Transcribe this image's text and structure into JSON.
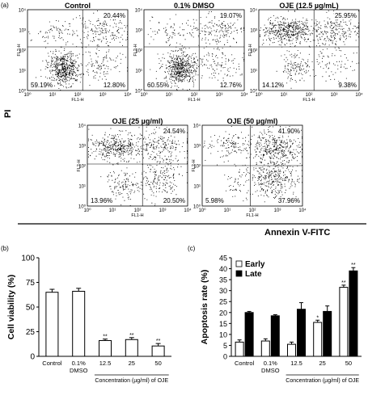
{
  "figure": {
    "panel_a_label": "(a)",
    "panel_b_label": "(b)",
    "panel_c_label": "(c)",
    "shared_y_label": "PI",
    "shared_x_label": "Annexin V-FITC"
  },
  "chart_data": [
    {
      "type": "scatter",
      "panel": "a",
      "plots": [
        {
          "title": "Control",
          "quadrants": {
            "UR": "20.44%",
            "LL": "59.19%",
            "LR": "12.80%"
          },
          "tick_labels": [
            "10⁰",
            "10¹",
            "10²",
            "10³",
            "10⁴"
          ],
          "y_axis": "FL2-H",
          "x_axis": "FL1-H"
        },
        {
          "title": "0.1% DMSO",
          "quadrants": {
            "UR": "19.07%",
            "LL": "60.55%",
            "LR": "12.76%"
          },
          "tick_labels": [
            "10⁰",
            "10¹",
            "10²",
            "10³",
            "10⁴"
          ],
          "y_axis": "FL2-H",
          "x_axis": "FL1-H"
        },
        {
          "title": "OJE (12.5 µg/mL)",
          "quadrants": {
            "UR": "25.95%",
            "LL": "14.12%",
            "LR": "9.38%"
          },
          "tick_labels": [
            "10⁰",
            "10¹",
            "10²",
            "10³",
            "10⁴"
          ],
          "y_axis": "FL2-H",
          "x_axis": "FL1-H"
        },
        {
          "title": "OJE (25 µg/ml)",
          "quadrants": {
            "UR": "24.54%",
            "LL": "13.96%",
            "LR": "20.50%"
          },
          "tick_labels": [
            "10⁰",
            "10¹",
            "10²",
            "10³",
            "10⁴"
          ],
          "y_axis": "FL2-H",
          "x_axis": "FL1-H"
        },
        {
          "title": "OJE (50 µg/ml)",
          "quadrants": {
            "UR": "41.90%",
            "LL": "5.98%",
            "LR": "37.96%"
          },
          "tick_labels": [
            "10⁰",
            "10¹",
            "10²",
            "10³",
            "10⁴"
          ],
          "y_axis": "FL2-H",
          "x_axis": "FL1-H"
        }
      ]
    },
    {
      "type": "bar",
      "panel": "b",
      "categories": [
        "Control",
        "0.1%\nDMSO",
        "12.5",
        "25",
        "50"
      ],
      "values": [
        65,
        66,
        16,
        17,
        10.5
      ],
      "errors": [
        3,
        3,
        1.5,
        2,
        2.5
      ],
      "significance": [
        "",
        "",
        "**",
        "**",
        "**"
      ],
      "ylabel": "Cell viability (%)",
      "xlabel": "Concentration (µg/ml) of OJE",
      "ylim": [
        0,
        100
      ],
      "yticks": [
        "0",
        "25",
        "50",
        "75",
        "100"
      ]
    },
    {
      "type": "bar",
      "panel": "c",
      "categories": [
        "Control",
        "0.1%\nDMSO",
        "12.5",
        "25",
        "50"
      ],
      "series": [
        {
          "name": "Early",
          "values": [
            6.5,
            7,
            5.5,
            15.5,
            31.5
          ],
          "errors": [
            1,
            1,
            1,
            1,
            1
          ],
          "significance": [
            "",
            "",
            "",
            "*",
            "**"
          ],
          "color": "#ffffff"
        },
        {
          "name": "Late",
          "values": [
            20,
            18.5,
            21.5,
            20.5,
            39
          ],
          "errors": [
            0.5,
            0.5,
            3,
            2.5,
            1.5
          ],
          "significance": [
            "",
            "",
            "",
            "",
            "**"
          ],
          "color": "#000000"
        }
      ],
      "ylabel": "Apoptosis rate (%)",
      "xlabel": "Concentration (µg/ml) of OJE",
      "ylim": [
        0,
        45
      ],
      "yticks": [
        "0",
        "5",
        "10",
        "15",
        "20",
        "25",
        "30",
        "35",
        "40",
        "45"
      ],
      "legend_position": "top-left"
    }
  ]
}
